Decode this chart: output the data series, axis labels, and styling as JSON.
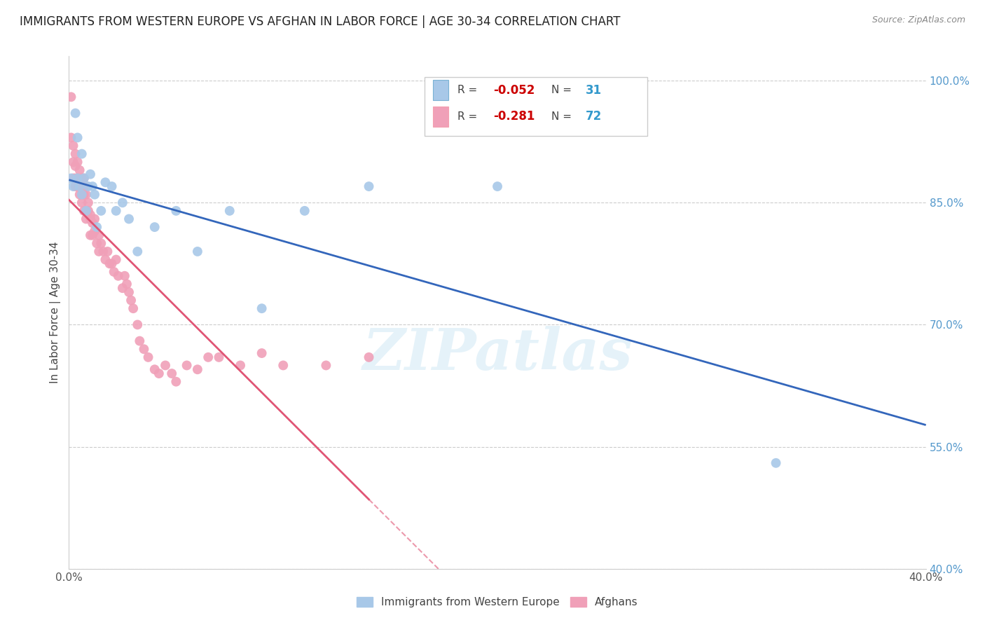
{
  "title": "IMMIGRANTS FROM WESTERN EUROPE VS AFGHAN IN LABOR FORCE | AGE 30-34 CORRELATION CHART",
  "source": "Source: ZipAtlas.com",
  "ylabel": "In Labor Force | Age 30-34",
  "xlim": [
    0.0,
    0.4
  ],
  "ylim": [
    0.4,
    1.03
  ],
  "ytick_right_labels": [
    "100.0%",
    "85.0%",
    "70.0%",
    "55.0%",
    "40.0%"
  ],
  "ytick_right_values": [
    1.0,
    0.85,
    0.7,
    0.55,
    0.4
  ],
  "blue_R": -0.052,
  "blue_N": 31,
  "pink_R": -0.281,
  "pink_N": 72,
  "blue_color": "#a8c8e8",
  "pink_color": "#f0a0b8",
  "blue_line_color": "#3366bb",
  "pink_line_color": "#e05575",
  "watermark": "ZIPatlas",
  "blue_scatter_x": [
    0.001,
    0.002,
    0.003,
    0.004,
    0.004,
    0.005,
    0.006,
    0.006,
    0.007,
    0.008,
    0.009,
    0.01,
    0.011,
    0.012,
    0.013,
    0.015,
    0.017,
    0.02,
    0.022,
    0.025,
    0.028,
    0.032,
    0.04,
    0.05,
    0.06,
    0.075,
    0.09,
    0.11,
    0.14,
    0.2,
    0.33
  ],
  "blue_scatter_y": [
    0.88,
    0.87,
    0.96,
    0.88,
    0.93,
    0.87,
    0.91,
    0.86,
    0.88,
    0.84,
    0.87,
    0.885,
    0.87,
    0.86,
    0.82,
    0.84,
    0.875,
    0.87,
    0.84,
    0.85,
    0.83,
    0.79,
    0.82,
    0.84,
    0.79,
    0.84,
    0.72,
    0.84,
    0.87,
    0.87,
    0.53
  ],
  "pink_scatter_x": [
    0.001,
    0.001,
    0.002,
    0.002,
    0.002,
    0.003,
    0.003,
    0.003,
    0.003,
    0.004,
    0.004,
    0.004,
    0.005,
    0.005,
    0.005,
    0.006,
    0.006,
    0.006,
    0.006,
    0.007,
    0.007,
    0.007,
    0.007,
    0.008,
    0.008,
    0.008,
    0.008,
    0.009,
    0.009,
    0.01,
    0.01,
    0.01,
    0.011,
    0.011,
    0.012,
    0.012,
    0.013,
    0.014,
    0.014,
    0.015,
    0.016,
    0.017,
    0.018,
    0.019,
    0.02,
    0.021,
    0.022,
    0.023,
    0.025,
    0.026,
    0.027,
    0.028,
    0.029,
    0.03,
    0.032,
    0.033,
    0.035,
    0.037,
    0.04,
    0.042,
    0.045,
    0.048,
    0.05,
    0.055,
    0.06,
    0.065,
    0.07,
    0.08,
    0.09,
    0.1,
    0.12,
    0.14
  ],
  "pink_scatter_y": [
    0.98,
    0.93,
    0.92,
    0.9,
    0.88,
    0.91,
    0.895,
    0.88,
    0.87,
    0.9,
    0.88,
    0.87,
    0.89,
    0.875,
    0.86,
    0.88,
    0.87,
    0.86,
    0.85,
    0.88,
    0.87,
    0.86,
    0.84,
    0.87,
    0.86,
    0.84,
    0.83,
    0.85,
    0.84,
    0.835,
    0.83,
    0.81,
    0.825,
    0.81,
    0.83,
    0.815,
    0.8,
    0.81,
    0.79,
    0.8,
    0.79,
    0.78,
    0.79,
    0.775,
    0.775,
    0.765,
    0.78,
    0.76,
    0.745,
    0.76,
    0.75,
    0.74,
    0.73,
    0.72,
    0.7,
    0.68,
    0.67,
    0.66,
    0.645,
    0.64,
    0.65,
    0.64,
    0.63,
    0.65,
    0.645,
    0.66,
    0.66,
    0.65,
    0.665,
    0.65,
    0.65,
    0.66
  ]
}
